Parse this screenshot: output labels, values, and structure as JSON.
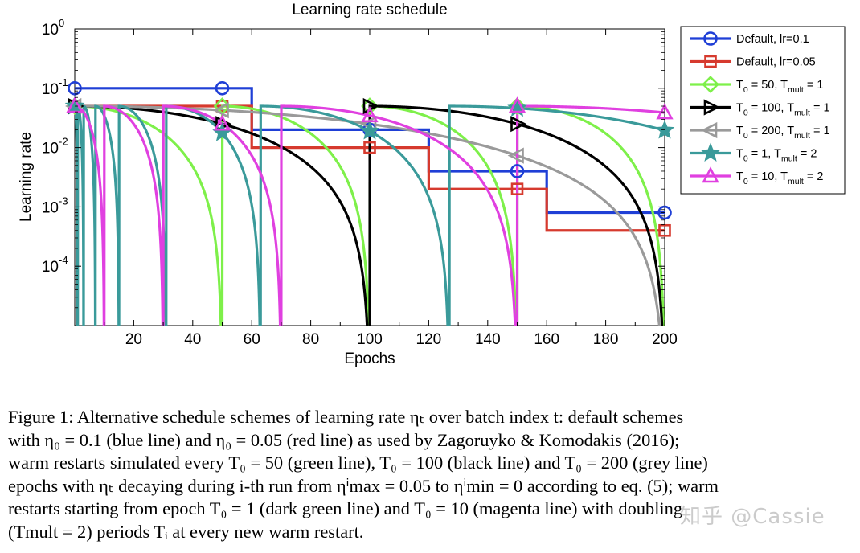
{
  "chart_data": {
    "type": "line",
    "title": "Learning rate schedule",
    "xlabel": "Epochs",
    "ylabel": "Learning rate",
    "xlim": [
      0,
      200
    ],
    "ylim": [
      1e-05,
      1
    ],
    "yscale": "log",
    "x_ticks": [
      "20",
      "40",
      "60",
      "80",
      "100",
      "120",
      "140",
      "160",
      "180",
      "200"
    ],
    "y_ticks": [
      {
        "base": "10",
        "exp": "0",
        "value": 1
      },
      {
        "base": "10",
        "exp": "-1",
        "value": 0.1
      },
      {
        "base": "10",
        "exp": "-2",
        "value": 0.01
      },
      {
        "base": "10",
        "exp": "-3",
        "value": 0.001
      },
      {
        "base": "10",
        "exp": "-4",
        "value": 0.0001
      }
    ],
    "grid": false,
    "legend_position": "outside-right",
    "series": [
      {
        "name": "Default, lr=0.1",
        "legend": {
          "text": "Default, lr=0.1"
        },
        "color": "#1f3fd6",
        "marker": "circle",
        "kind": "step",
        "steps": [
          [
            0,
            0.1
          ],
          [
            60,
            0.02
          ],
          [
            120,
            0.004
          ],
          [
            160,
            0.0008
          ],
          [
            200,
            0.0008
          ]
        ],
        "marker_x": [
          0,
          50,
          100,
          150,
          200
        ]
      },
      {
        "name": "Default, lr=0.05",
        "legend": {
          "text": "Default, lr=0.05"
        },
        "color": "#d63a2e",
        "marker": "square",
        "kind": "step",
        "steps": [
          [
            0,
            0.05
          ],
          [
            60,
            0.01
          ],
          [
            120,
            0.002
          ],
          [
            160,
            0.0004
          ],
          [
            200,
            0.0004
          ]
        ],
        "marker_x": [
          50,
          100,
          150,
          200
        ]
      },
      {
        "name": "T_0 = 50, T_mult = 1",
        "legend": {
          "sub1": "0",
          "mid": " = 50, T",
          "sub2": "mult",
          "tail": " = 1"
        },
        "color": "#7ef04a",
        "marker": "diamond",
        "kind": "cosine",
        "eta_max": 0.05,
        "T0": 50,
        "Tmult": 1,
        "marker_x": [
          0,
          50,
          100,
          150,
          200
        ]
      },
      {
        "name": "T_0 = 100, T_mult = 1",
        "legend": {
          "sub1": "0",
          "mid": " = 100, T",
          "sub2": "mult",
          "tail": " = 1"
        },
        "color": "#000000",
        "marker": "triangle-right",
        "kind": "cosine",
        "eta_max": 0.05,
        "T0": 100,
        "Tmult": 1,
        "marker_x": [
          0,
          50,
          100,
          150,
          200
        ]
      },
      {
        "name": "T_0 = 200, T_mult = 1",
        "legend": {
          "sub1": "0",
          "mid": " = 200, T",
          "sub2": "mult",
          "tail": " = 1"
        },
        "color": "#9a9a9a",
        "marker": "triangle-left",
        "kind": "cosine",
        "eta_max": 0.05,
        "T0": 200,
        "Tmult": 1,
        "marker_x": [
          0,
          50,
          100,
          150,
          200
        ]
      },
      {
        "name": "T_0 = 1, T_mult = 2",
        "legend": {
          "sub1": "0",
          "mid": " = 1, T",
          "sub2": "mult",
          "tail": " = 2"
        },
        "color": "#3a9a9a",
        "marker": "star",
        "kind": "cosine",
        "eta_max": 0.05,
        "T0": 1,
        "Tmult": 2,
        "marker_x": [
          0,
          50,
          100,
          150,
          200
        ]
      },
      {
        "name": "T_0 = 10, T_mult = 2",
        "legend": {
          "sub1": "0",
          "mid": " = 10, T",
          "sub2": "mult",
          "tail": " = 2"
        },
        "color": "#e040e0",
        "marker": "triangle-up",
        "kind": "cosine",
        "eta_max": 0.05,
        "T0": 10,
        "Tmult": 2,
        "marker_x": [
          0,
          50,
          100,
          150,
          200
        ]
      }
    ]
  },
  "caption": {
    "lines": [
      "Figure 1:   Alternative schedule schemes of learning rate ηₜ over batch index t: default schemes",
      "with η₀ = 0.1 (blue line) and η₀ = 0.05 (red line) as used by Zagoruyko & Komodakis (2016);",
      "warm restarts simulated every T₀ = 50 (green line), T₀ = 100 (black line) and T₀ = 200 (grey line)",
      "epochs with ηₜ decaying during i-th run from ηⁱmax = 0.05 to ηⁱmin = 0 according to eq. (5); warm",
      "restarts starting from epoch T₀ = 1 (dark green line) and T₀ = 10 (magenta line) with doubling",
      "(Tmult = 2) periods Tᵢ at every new warm restart."
    ]
  },
  "watermark": "知乎 @Cassie"
}
